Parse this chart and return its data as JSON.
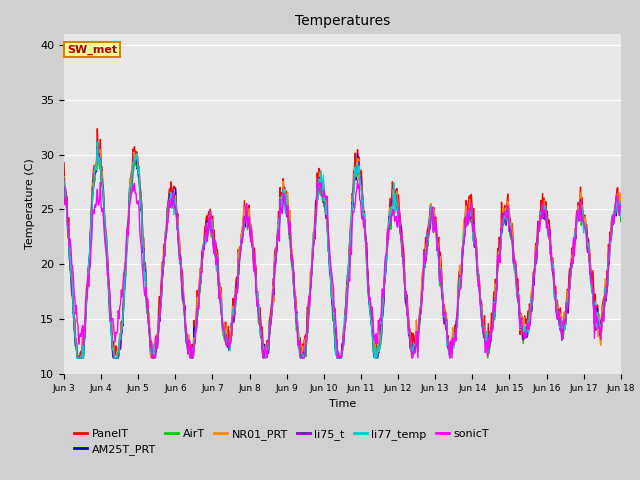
{
  "title": "Temperatures",
  "xlabel": "Time",
  "ylabel": "Temperature (C)",
  "ylim": [
    10,
    41
  ],
  "xlim_days": [
    3,
    18
  ],
  "fig_facecolor": "#d0d0d0",
  "plot_bg_color": "#e8e8e8",
  "annotation_text": "SW_met",
  "annotation_color": "#aa0000",
  "annotation_bg": "#ffff99",
  "annotation_border": "#cc8800",
  "series": [
    {
      "label": "PanelT",
      "color": "#ff0000"
    },
    {
      "label": "AM25T_PRT",
      "color": "#0000dd"
    },
    {
      "label": "AirT",
      "color": "#00cc00"
    },
    {
      "label": "NR01_PRT",
      "color": "#ff8800"
    },
    {
      "label": "li75_t",
      "color": "#8800cc"
    },
    {
      "label": "li77_temp",
      "color": "#00cccc"
    },
    {
      "label": "sonicT",
      "color": "#ff00ff"
    }
  ],
  "tick_labels": [
    "Jun 3",
    "Jun 4",
    "Jun 5",
    "Jun 6",
    "Jun 7",
    "Jun 8",
    "Jun 9",
    "Jun 10",
    "Jun 11",
    "Jun 12",
    "Jun 13",
    "Jun 14",
    "Jun 15",
    "Jun 16",
    "Jun 17",
    "Jun 18"
  ],
  "tick_positions": [
    3,
    4,
    5,
    6,
    7,
    8,
    9,
    10,
    11,
    12,
    13,
    14,
    15,
    16,
    17,
    18
  ]
}
